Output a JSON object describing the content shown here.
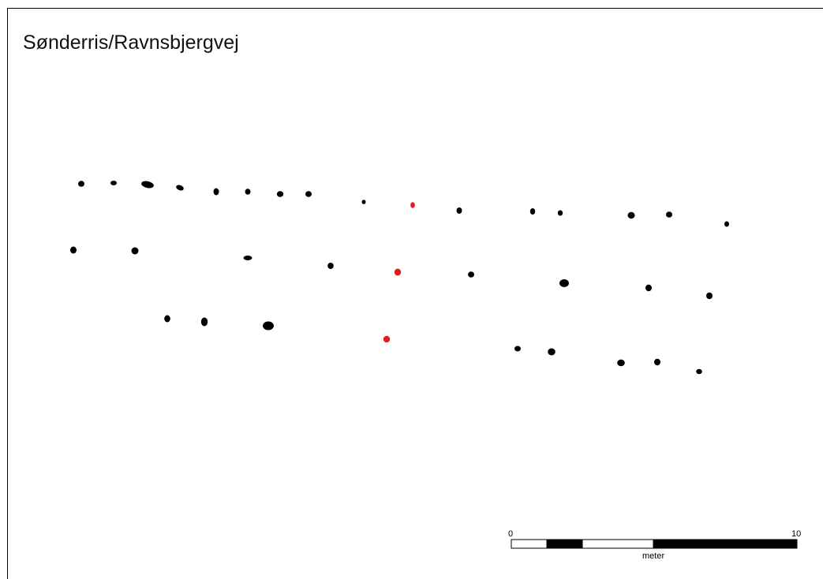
{
  "map": {
    "title": "Sønderris/Ravnsbjergvej",
    "colors": {
      "posthole": "#000000",
      "highlight": "#e02020",
      "frame": "#000000"
    },
    "scalebar": {
      "start_label": "0",
      "end_label": "10",
      "unit_label": "meter",
      "segment_colors": [
        "#ffffff",
        "#000000",
        "#ffffff",
        "#000000"
      ]
    }
  }
}
